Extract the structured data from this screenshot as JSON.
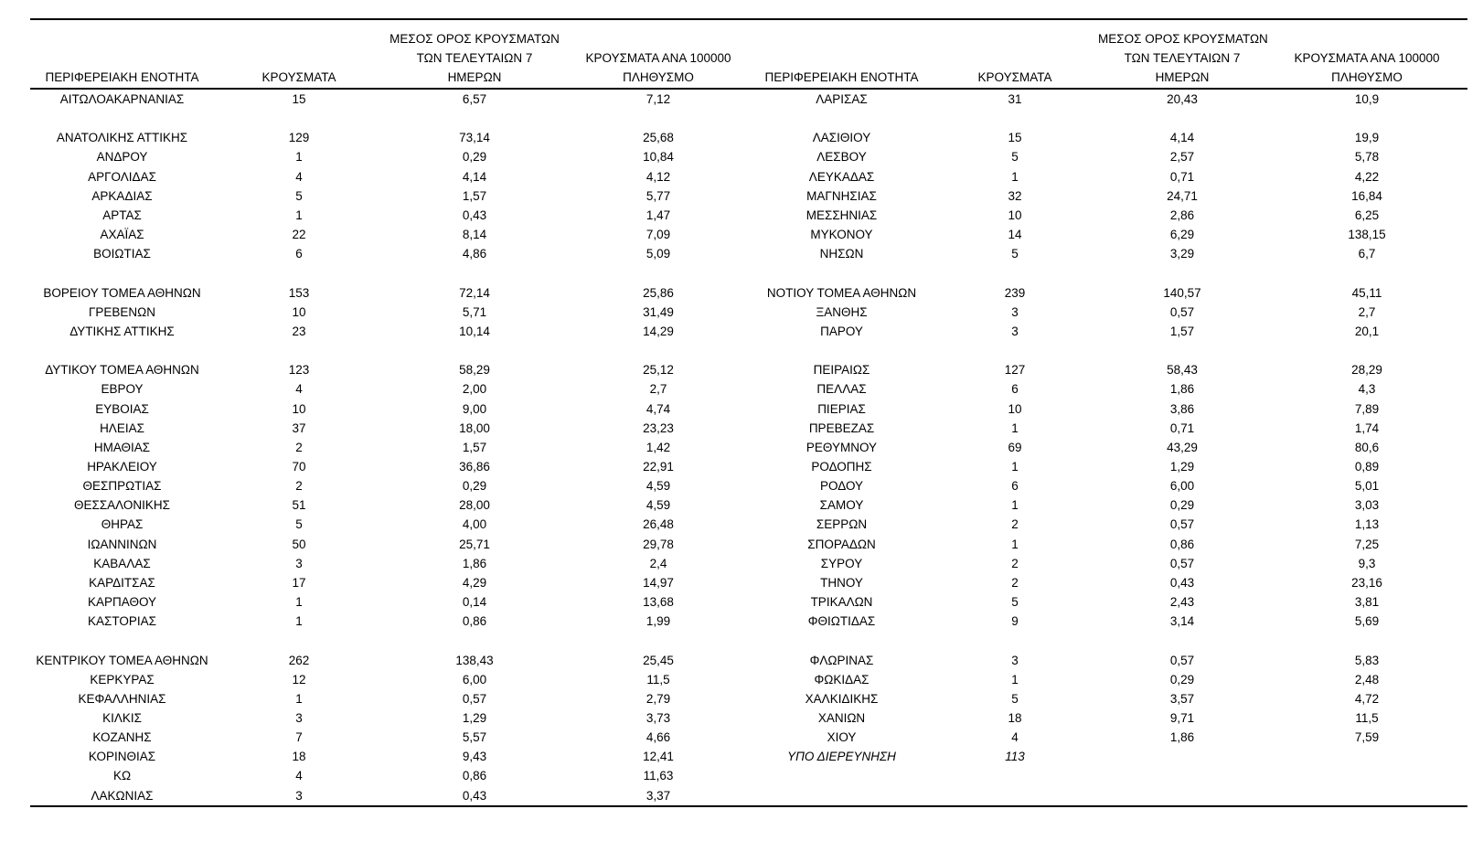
{
  "colors": {
    "text": "#000000",
    "rule": "#000000",
    "background": "#ffffff"
  },
  "table": {
    "headers": {
      "region": "ΠΕΡΙΦΕΡΕΙΑΚΗ ΕΝΟΤΗΤΑ",
      "cases": "ΚΡΟΥΣΜΑΤΑ",
      "avg7_l1": "ΜΕΣΟΣ ΟΡΟΣ ΚΡΟΥΣΜΑΤΩΝ",
      "avg7_l2": "ΤΩΝ ΤΕΛΕΥΤΑΙΩΝ 7",
      "avg7_l3": "ΗΜΕΡΩΝ",
      "per100k_l1": "ΚΡΟΥΣΜΑΤΑ ΑΝΑ 100000",
      "per100k_l2": "ΠΛΗΘΥΣΜΟ"
    },
    "rows_left": [
      {
        "region": "ΑΙΤΩΛΟΑΚΑΡΝΑΝΙΑΣ",
        "cases": "15",
        "avg7": "6,57",
        "per100k": "7,12"
      },
      {
        "blank": true
      },
      {
        "region": "ΑΝΑΤΟΛΙΚΗΣ ΑΤΤΙΚΗΣ",
        "cases": "129",
        "avg7": "73,14",
        "per100k": "25,68"
      },
      {
        "region": "ΑΝΔΡΟΥ",
        "cases": "1",
        "avg7": "0,29",
        "per100k": "10,84"
      },
      {
        "region": "ΑΡΓΟΛΙΔΑΣ",
        "cases": "4",
        "avg7": "4,14",
        "per100k": "4,12"
      },
      {
        "region": "ΑΡΚΑΔΙΑΣ",
        "cases": "5",
        "avg7": "1,57",
        "per100k": "5,77"
      },
      {
        "region": "ΑΡΤΑΣ",
        "cases": "1",
        "avg7": "0,43",
        "per100k": "1,47"
      },
      {
        "region": "ΑΧΑΪΑΣ",
        "cases": "22",
        "avg7": "8,14",
        "per100k": "7,09"
      },
      {
        "region": "ΒΟΙΩΤΙΑΣ",
        "cases": "6",
        "avg7": "4,86",
        "per100k": "5,09"
      },
      {
        "blank": true
      },
      {
        "region": "ΒΟΡΕΙΟΥ ΤΟΜΕΑ ΑΘΗΝΩΝ",
        "cases": "153",
        "avg7": "72,14",
        "per100k": "25,86"
      },
      {
        "region": "ΓΡΕΒΕΝΩΝ",
        "cases": "10",
        "avg7": "5,71",
        "per100k": "31,49"
      },
      {
        "region": "ΔΥΤΙΚΗΣ ΑΤΤΙΚΗΣ",
        "cases": "23",
        "avg7": "10,14",
        "per100k": "14,29"
      },
      {
        "blank": true
      },
      {
        "region": "ΔΥΤΙΚΟΥ ΤΟΜΕΑ ΑΘΗΝΩΝ",
        "cases": "123",
        "avg7": "58,29",
        "per100k": "25,12"
      },
      {
        "region": "ΕΒΡΟΥ",
        "cases": "4",
        "avg7": "2,00",
        "per100k": "2,7"
      },
      {
        "region": "ΕΥΒΟΙΑΣ",
        "cases": "10",
        "avg7": "9,00",
        "per100k": "4,74"
      },
      {
        "region": "ΗΛΕΙΑΣ",
        "cases": "37",
        "avg7": "18,00",
        "per100k": "23,23"
      },
      {
        "region": "ΗΜΑΘΙΑΣ",
        "cases": "2",
        "avg7": "1,57",
        "per100k": "1,42"
      },
      {
        "region": "ΗΡΑΚΛΕΙΟΥ",
        "cases": "70",
        "avg7": "36,86",
        "per100k": "22,91"
      },
      {
        "region": "ΘΕΣΠΡΩΤΙΑΣ",
        "cases": "2",
        "avg7": "0,29",
        "per100k": "4,59"
      },
      {
        "region": "ΘΕΣΣΑΛΟΝΙΚΗΣ",
        "cases": "51",
        "avg7": "28,00",
        "per100k": "4,59"
      },
      {
        "region": "ΘΗΡΑΣ",
        "cases": "5",
        "avg7": "4,00",
        "per100k": "26,48"
      },
      {
        "region": "ΙΩΑΝΝΙΝΩΝ",
        "cases": "50",
        "avg7": "25,71",
        "per100k": "29,78"
      },
      {
        "region": "ΚΑΒΑΛΑΣ",
        "cases": "3",
        "avg7": "1,86",
        "per100k": "2,4"
      },
      {
        "region": "ΚΑΡΔΙΤΣΑΣ",
        "cases": "17",
        "avg7": "4,29",
        "per100k": "14,97"
      },
      {
        "region": "ΚΑΡΠΑΘΟΥ",
        "cases": "1",
        "avg7": "0,14",
        "per100k": "13,68"
      },
      {
        "region": "ΚΑΣΤΟΡΙΑΣ",
        "cases": "1",
        "avg7": "0,86",
        "per100k": "1,99"
      },
      {
        "blank": true
      },
      {
        "region": "ΚΕΝΤΡΙΚΟΥ ΤΟΜΕΑ ΑΘΗΝΩΝ",
        "cases": "262",
        "avg7": "138,43",
        "per100k": "25,45"
      },
      {
        "region": "ΚΕΡΚΥΡΑΣ",
        "cases": "12",
        "avg7": "6,00",
        "per100k": "11,5"
      },
      {
        "region": "ΚΕΦΑΛΛΗΝΙΑΣ",
        "cases": "1",
        "avg7": "0,57",
        "per100k": "2,79"
      },
      {
        "region": "ΚΙΛΚΙΣ",
        "cases": "3",
        "avg7": "1,29",
        "per100k": "3,73"
      },
      {
        "region": "ΚΟΖΑΝΗΣ",
        "cases": "7",
        "avg7": "5,57",
        "per100k": "4,66"
      },
      {
        "region": "ΚΟΡΙΝΘΙΑΣ",
        "cases": "18",
        "avg7": "9,43",
        "per100k": "12,41"
      },
      {
        "region": "ΚΩ",
        "cases": "4",
        "avg7": "0,86",
        "per100k": "11,63"
      },
      {
        "region": "ΛΑΚΩΝΙΑΣ",
        "cases": "3",
        "avg7": "0,43",
        "per100k": "3,37"
      }
    ],
    "rows_right": [
      {
        "region": "ΛΑΡΙΣΑΣ",
        "cases": "31",
        "avg7": "20,43",
        "per100k": "10,9"
      },
      {
        "blank": true
      },
      {
        "region": "ΛΑΣΙΘΙΟΥ",
        "cases": "15",
        "avg7": "4,14",
        "per100k": "19,9"
      },
      {
        "region": "ΛΕΣΒΟΥ",
        "cases": "5",
        "avg7": "2,57",
        "per100k": "5,78"
      },
      {
        "region": "ΛΕΥΚΑΔΑΣ",
        "cases": "1",
        "avg7": "0,71",
        "per100k": "4,22"
      },
      {
        "region": "ΜΑΓΝΗΣΙΑΣ",
        "cases": "32",
        "avg7": "24,71",
        "per100k": "16,84"
      },
      {
        "region": "ΜΕΣΣΗΝΙΑΣ",
        "cases": "10",
        "avg7": "2,86",
        "per100k": "6,25"
      },
      {
        "region": "ΜΥΚΟΝΟΥ",
        "cases": "14",
        "avg7": "6,29",
        "per100k": "138,15"
      },
      {
        "region": "ΝΗΣΩΝ",
        "cases": "5",
        "avg7": "3,29",
        "per100k": "6,7"
      },
      {
        "blank": true
      },
      {
        "region": "ΝΟΤΙΟΥ ΤΟΜΕΑ ΑΘΗΝΩΝ",
        "cases": "239",
        "avg7": "140,57",
        "per100k": "45,11"
      },
      {
        "region": "ΞΑΝΘΗΣ",
        "cases": "3",
        "avg7": "0,57",
        "per100k": "2,7"
      },
      {
        "region": "ΠΑΡΟΥ",
        "cases": "3",
        "avg7": "1,57",
        "per100k": "20,1"
      },
      {
        "blank": true
      },
      {
        "region": "ΠΕΙΡΑΙΩΣ",
        "cases": "127",
        "avg7": "58,43",
        "per100k": "28,29"
      },
      {
        "region": "ΠΕΛΛΑΣ",
        "cases": "6",
        "avg7": "1,86",
        "per100k": "4,3"
      },
      {
        "region": "ΠΙΕΡΙΑΣ",
        "cases": "10",
        "avg7": "3,86",
        "per100k": "7,89"
      },
      {
        "region": "ΠΡΕΒΕΖΑΣ",
        "cases": "1",
        "avg7": "0,71",
        "per100k": "1,74"
      },
      {
        "region": "ΡΕΘΥΜΝΟΥ",
        "cases": "69",
        "avg7": "43,29",
        "per100k": "80,6"
      },
      {
        "region": "ΡΟΔΟΠΗΣ",
        "cases": "1",
        "avg7": "1,29",
        "per100k": "0,89"
      },
      {
        "region": "ΡΟΔΟΥ",
        "cases": "6",
        "avg7": "6,00",
        "per100k": "5,01"
      },
      {
        "region": "ΣΑΜΟΥ",
        "cases": "1",
        "avg7": "0,29",
        "per100k": "3,03"
      },
      {
        "region": "ΣΕΡΡΩΝ",
        "cases": "2",
        "avg7": "0,57",
        "per100k": "1,13"
      },
      {
        "region": "ΣΠΟΡΑΔΩΝ",
        "cases": "1",
        "avg7": "0,86",
        "per100k": "7,25"
      },
      {
        "region": "ΣΥΡΟΥ",
        "cases": "2",
        "avg7": "0,57",
        "per100k": "9,3"
      },
      {
        "region": "ΤΗΝΟΥ",
        "cases": "2",
        "avg7": "0,43",
        "per100k": "23,16"
      },
      {
        "region": "ΤΡΙΚΑΛΩΝ",
        "cases": "5",
        "avg7": "2,43",
        "per100k": "3,81"
      },
      {
        "region": "ΦΘΙΩΤΙΔΑΣ",
        "cases": "9",
        "avg7": "3,14",
        "per100k": "5,69"
      },
      {
        "blank": true
      },
      {
        "region": "ΦΛΩΡΙΝΑΣ",
        "cases": "3",
        "avg7": "0,57",
        "per100k": "5,83"
      },
      {
        "region": "ΦΩΚΙΔΑΣ",
        "cases": "1",
        "avg7": "0,29",
        "per100k": "2,48"
      },
      {
        "region": "ΧΑΛΚΙΔΙΚΗΣ",
        "cases": "5",
        "avg7": "3,57",
        "per100k": "4,72"
      },
      {
        "region": "ΧΑΝΙΩΝ",
        "cases": "18",
        "avg7": "9,71",
        "per100k": "11,5"
      },
      {
        "region": "ΧΙΟΥ",
        "cases": "4",
        "avg7": "1,86",
        "per100k": "7,59"
      },
      {
        "region": "ΥΠΟ ΔΙΕΡΕΥΝΗΣΗ",
        "cases": "113",
        "avg7": "",
        "per100k": "",
        "italic": true
      },
      {
        "blank": true
      },
      {
        "blank": true
      }
    ]
  }
}
